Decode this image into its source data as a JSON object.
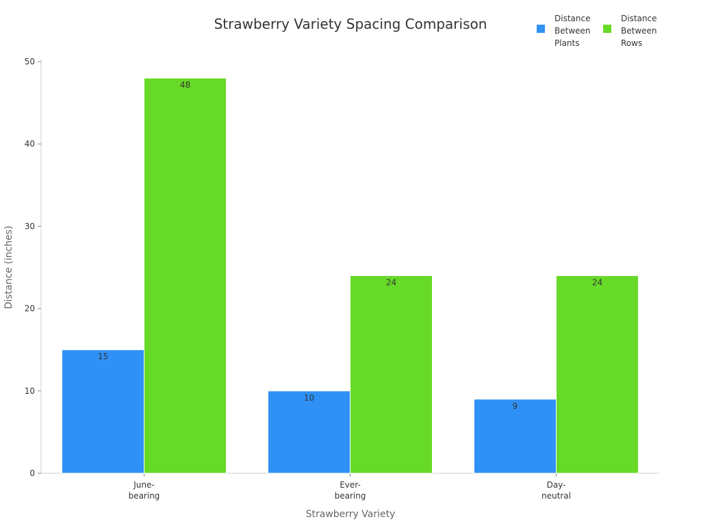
{
  "chart_data": {
    "type": "bar",
    "title": "Strawberry Variety Spacing Comparison",
    "xlabel": "Strawberry Variety",
    "ylabel": "Distance (inches)",
    "ylim": [
      0,
      50
    ],
    "yticks": [
      0,
      10,
      20,
      30,
      40,
      50
    ],
    "categories": [
      [
        "June-",
        "bearing"
      ],
      [
        "Ever-",
        "bearing"
      ],
      [
        "Day-",
        "neutral"
      ]
    ],
    "series": [
      {
        "name": [
          "Distance",
          "Between",
          "Plants"
        ],
        "color": "#2f91f5",
        "values": [
          15,
          10,
          9
        ]
      },
      {
        "name": [
          "Distance",
          "Between",
          "Rows"
        ],
        "color": "#66da26",
        "values": [
          48,
          24,
          24
        ]
      }
    ],
    "legend": "top-right",
    "grid": false
  }
}
